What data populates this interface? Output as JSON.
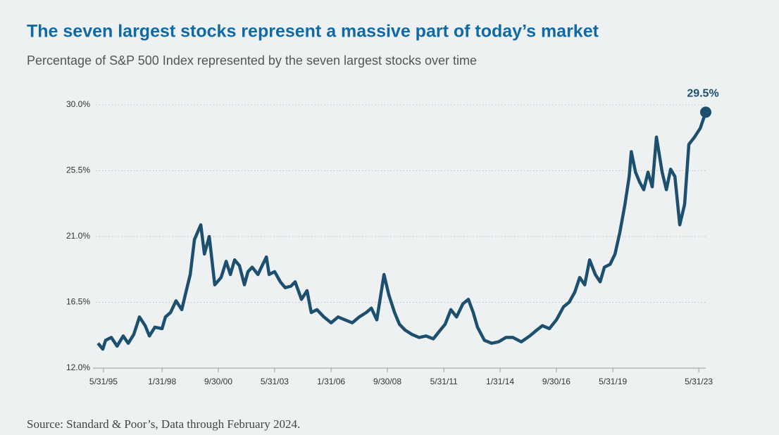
{
  "chart_data": {
    "type": "line",
    "title": "The seven largest stocks represent a massive part of today’s market",
    "subtitle": "Percentage of S&P 500 Index represented by the seven largest stocks over time",
    "source": "Source: Standard & Poor’s, Data through February 2024.",
    "end_label": "29.5%",
    "x": [
      1995.42,
      1995.65,
      1995.78,
      1996.05,
      1996.32,
      1996.61,
      1996.85,
      1997.11,
      1997.38,
      1997.65,
      1997.85,
      1998.11,
      1998.45,
      1998.61,
      1998.85,
      1999.11,
      1999.38,
      1999.61,
      1999.78,
      1999.98,
      2000.28,
      2000.45,
      2000.68,
      2000.94,
      2001.24,
      2001.48,
      2001.68,
      2001.88,
      2002.11,
      2002.34,
      2002.51,
      2002.71,
      2002.98,
      2003.21,
      2003.38,
      2003.51,
      2003.77,
      2004.04,
      2004.27,
      2004.54,
      2004.74,
      2005.04,
      2005.3,
      2005.5,
      2005.77,
      2006.1,
      2006.44,
      2006.77,
      2007.1,
      2007.44,
      2007.77,
      2008.1,
      2008.34,
      2008.6,
      2008.94,
      2009.17,
      2009.44,
      2009.67,
      2009.94,
      2010.27,
      2010.6,
      2010.93,
      2011.27,
      2011.6,
      2011.83,
      2012.1,
      2012.37,
      2012.67,
      2012.93,
      2013.16,
      2013.36,
      2013.69,
      2014.03,
      2014.36,
      2014.7,
      2015.03,
      2015.43,
      2015.83,
      2016.16,
      2016.43,
      2016.76,
      2017.09,
      2017.43,
      2017.69,
      2017.96,
      2018.19,
      2018.43,
      2018.66,
      2018.93,
      2019.16,
      2019.36,
      2019.63,
      2019.86,
      2020.09,
      2020.33,
      2020.53,
      2020.63,
      2020.83,
      2021.03,
      2021.22,
      2021.42,
      2021.62,
      2021.82,
      2022.09,
      2022.29,
      2022.49,
      2022.69,
      2022.92,
      2023.15,
      2023.35,
      2023.62,
      2023.89,
      2024.15
    ],
    "series": [
      {
        "name": "Seven largest stocks",
        "color": "#1d4f6e",
        "values": [
          13.7,
          13.3,
          13.9,
          14.1,
          13.5,
          14.2,
          13.7,
          14.3,
          15.5,
          14.9,
          14.2,
          14.8,
          14.7,
          15.5,
          15.8,
          16.6,
          16.0,
          17.4,
          18.4,
          20.8,
          21.8,
          19.8,
          21.0,
          17.7,
          18.2,
          19.3,
          18.4,
          19.4,
          19.0,
          17.7,
          18.6,
          18.9,
          18.4,
          19.1,
          19.6,
          18.4,
          18.6,
          17.9,
          17.5,
          17.6,
          17.9,
          16.7,
          17.3,
          15.8,
          16.0,
          15.5,
          15.1,
          15.5,
          15.3,
          15.1,
          15.5,
          15.8,
          16.1,
          15.3,
          18.4,
          17.0,
          15.8,
          15.0,
          14.6,
          14.3,
          14.1,
          14.2,
          14.0,
          14.6,
          15.0,
          16.0,
          15.5,
          16.4,
          16.7,
          15.8,
          14.8,
          13.9,
          13.7,
          13.8,
          14.1,
          14.1,
          13.8,
          14.2,
          14.6,
          14.9,
          14.7,
          15.3,
          16.2,
          16.5,
          17.2,
          18.2,
          17.7,
          19.4,
          18.4,
          17.9,
          18.9,
          19.1,
          19.8,
          21.3,
          23.2,
          25.1,
          26.8,
          25.4,
          24.7,
          24.2,
          25.4,
          24.4,
          27.8,
          25.4,
          24.2,
          25.6,
          25.1,
          21.8,
          23.2,
          27.3,
          27.8,
          28.4,
          29.5
        ]
      }
    ],
    "xlim": [
      1994.85,
      2024.15
    ],
    "ylim": [
      12,
      30
    ],
    "xticks": [
      {
        "value": 1995.68,
        "label": "5/31/95"
      },
      {
        "value": 1998.45,
        "label": "1/31/98"
      },
      {
        "value": 2001.11,
        "label": "9/30/00"
      },
      {
        "value": 2003.77,
        "label": "5/31/03"
      },
      {
        "value": 2006.44,
        "label": "1/31/06"
      },
      {
        "value": 2009.1,
        "label": "9/30/08"
      },
      {
        "value": 2011.77,
        "label": "5/31/11"
      },
      {
        "value": 2014.43,
        "label": "1/31/14"
      },
      {
        "value": 2017.09,
        "label": "9/30/16"
      },
      {
        "value": 2019.76,
        "label": "5/31/19"
      },
      {
        "value": 2023.82,
        "label": "5/31/23"
      }
    ],
    "yticks": [
      {
        "value": 12,
        "label": "12.0%"
      },
      {
        "value": 16.5,
        "label": "16.5%"
      },
      {
        "value": 21,
        "label": "21.0%"
      },
      {
        "value": 25.5,
        "label": "25.5%"
      },
      {
        "value": 30,
        "label": "30.0%"
      }
    ],
    "grid": true
  }
}
